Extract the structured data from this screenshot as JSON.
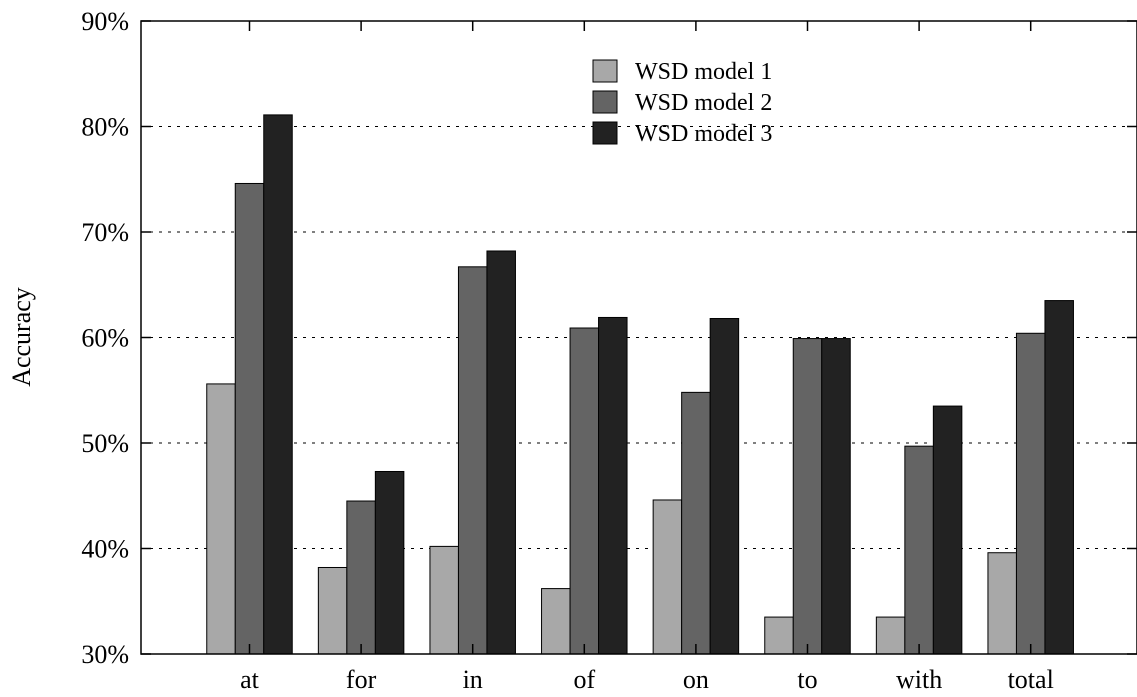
{
  "chart_data": {
    "type": "bar",
    "categories": [
      "at",
      "for",
      "in",
      "of",
      "on",
      "to",
      "with",
      "total"
    ],
    "series": [
      {
        "name": "WSD model 1",
        "color": "#a8a8a8",
        "values": [
          55.6,
          38.2,
          40.2,
          36.2,
          44.6,
          33.5,
          33.5,
          39.6
        ]
      },
      {
        "name": "WSD model 2",
        "color": "#646464",
        "values": [
          74.6,
          44.5,
          66.7,
          60.9,
          54.8,
          59.9,
          49.7,
          60.4
        ]
      },
      {
        "name": "WSD model 3",
        "color": "#222222",
        "values": [
          81.1,
          47.3,
          68.2,
          61.9,
          61.8,
          59.9,
          53.5,
          63.5
        ]
      }
    ],
    "xlabel": "",
    "ylabel": "Accuracy",
    "ylim": [
      30,
      90
    ],
    "yticks": [
      "30%",
      "40%",
      "50%",
      "60%",
      "70%",
      "80%",
      "90%"
    ],
    "grid": "horizontal dotted",
    "legend_position": "top-center"
  }
}
